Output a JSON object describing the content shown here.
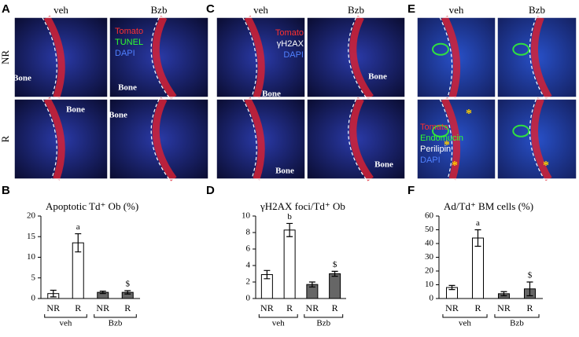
{
  "panels": [
    {
      "letter": "A",
      "columns": [
        "veh",
        "Bzb"
      ],
      "rows": [
        "NR",
        "R"
      ],
      "stains": [
        {
          "text": "Tomato",
          "color": "#ff3030"
        },
        {
          "text": "TUNEL",
          "color": "#30ff30"
        },
        {
          "text": "DAPI",
          "color": "#5080ff"
        }
      ],
      "labels": [
        "Bone",
        "Bone",
        "Bone",
        "Bone"
      ]
    },
    {
      "letter": "C",
      "columns": [
        "veh",
        "Bzb"
      ],
      "rows": [],
      "stains": [
        {
          "text": "Tomato",
          "color": "#ff3030"
        },
        {
          "text": "γH2AX",
          "color": "#ffffff"
        },
        {
          "text": "DAPI",
          "color": "#5080ff"
        }
      ],
      "labels": [
        "Bone",
        "Bone",
        "Bone",
        "Bone"
      ]
    },
    {
      "letter": "E",
      "columns": [
        "veh",
        "Bzb"
      ],
      "rows": [],
      "stains": [
        {
          "text": "Tomato",
          "color": "#ff3030"
        },
        {
          "text": "Endomucin",
          "color": "#30ff30"
        },
        {
          "text": "Perilipin",
          "color": "#ffffff"
        },
        {
          "text": "DAPI",
          "color": "#5080ff"
        }
      ],
      "labels": [
        "*",
        "*",
        "*",
        "*"
      ]
    }
  ],
  "chart_data": [
    {
      "type": "bar",
      "letter": "B",
      "title": "Apoptotic Td⁺ Ob (%)",
      "categories": [
        "NR",
        "R",
        "NR",
        "R"
      ],
      "groups": [
        "veh",
        "Bzb"
      ],
      "values": [
        1.2,
        13.5,
        1.5,
        1.5
      ],
      "errors": [
        0.8,
        2.2,
        0.3,
        0.4
      ],
      "value_labels": [
        null,
        "a",
        null,
        "$"
      ],
      "colors": [
        "#ffffff",
        "#ffffff",
        "#666666",
        "#666666"
      ],
      "ylim": [
        0,
        20
      ],
      "yticks": [
        0,
        5,
        10,
        15,
        20
      ]
    },
    {
      "type": "bar",
      "letter": "D",
      "title": "γH2AX foci/Td⁺ Ob",
      "categories": [
        "NR",
        "R",
        "NR",
        "R"
      ],
      "groups": [
        "veh",
        "Bzb"
      ],
      "values": [
        2.9,
        8.3,
        1.7,
        3.0
      ],
      "errors": [
        0.5,
        0.8,
        0.3,
        0.3
      ],
      "value_labels": [
        null,
        "b",
        null,
        "$"
      ],
      "colors": [
        "#ffffff",
        "#ffffff",
        "#666666",
        "#666666"
      ],
      "ylim": [
        0,
        10
      ],
      "yticks": [
        0,
        2,
        4,
        6,
        8,
        10
      ]
    },
    {
      "type": "bar",
      "letter": "F",
      "title": "Ad/Td⁺ BM cells  (%)",
      "categories": [
        "NR",
        "R",
        "NR",
        "R"
      ],
      "groups": [
        "veh",
        "Bzb"
      ],
      "values": [
        8,
        44,
        3.5,
        7
      ],
      "errors": [
        1.5,
        6,
        1.5,
        5
      ],
      "value_labels": [
        null,
        "a",
        null,
        "$"
      ],
      "colors": [
        "#ffffff",
        "#ffffff",
        "#666666",
        "#666666"
      ],
      "ylim": [
        0,
        60
      ],
      "yticks": [
        0,
        10,
        20,
        30,
        40,
        50,
        60
      ]
    }
  ]
}
